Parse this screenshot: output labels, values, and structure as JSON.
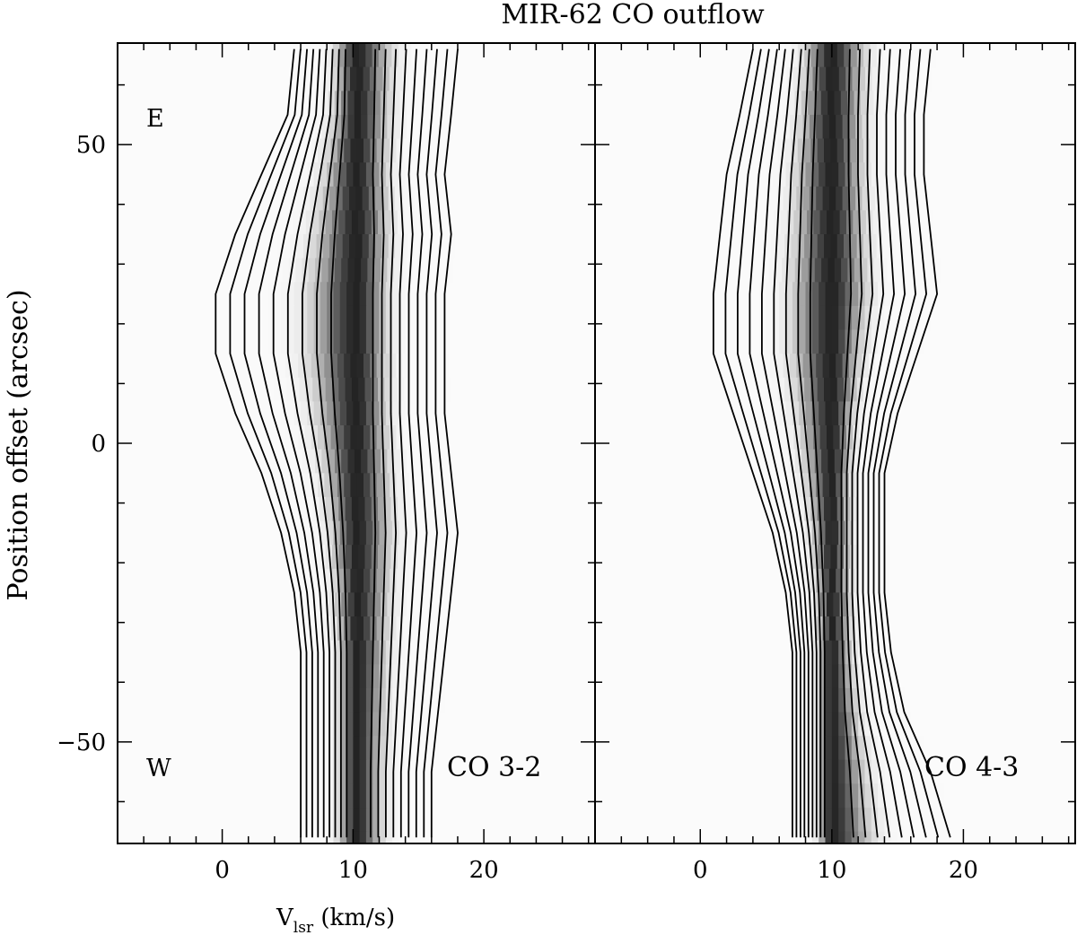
{
  "chart_data": {
    "type": "heatmap",
    "title": "MIR-62 CO outflow",
    "xlabel_main": "V",
    "xlabel_sub": "lsr",
    "xlabel_rest": " (km/s)",
    "ylabel": "Position offset (arcsec)",
    "xlim": [
      -8,
      28.5
    ],
    "ylim": [
      -67,
      67
    ],
    "grid": false,
    "panels": [
      {
        "line": "CO 3-2",
        "x_ticks": [
          0,
          10,
          20
        ],
        "y_ticks": [
          50,
          0,
          -50
        ],
        "corner_labels": {
          "top": "E",
          "bottom": "W"
        },
        "core_velocity": 10.3,
        "edge_velocities": {
          "offsets": [
            66,
            55,
            45,
            35,
            25,
            15,
            5,
            -5,
            -15,
            -25,
            -35,
            -45,
            -55,
            -66
          ],
          "blue": [
            5.5,
            5.0,
            3.0,
            1.0,
            -0.5,
            -0.5,
            1.0,
            3.0,
            4.5,
            5.5,
            6.0,
            6.0,
            6.0,
            6.0
          ],
          "red": [
            18.0,
            17.5,
            17.0,
            17.5,
            17.0,
            17.0,
            17.0,
            17.5,
            18.0,
            17.5,
            17.0,
            16.5,
            16.0,
            16.0
          ]
        }
      },
      {
        "line": "CO 4-3",
        "x_ticks": [
          0,
          10,
          20
        ],
        "y_ticks": [
          50,
          0,
          -50
        ],
        "corner_labels": {
          "top": "",
          "bottom": ""
        },
        "core_velocity": 10.0,
        "edge_velocities": {
          "offsets": [
            66,
            55,
            45,
            35,
            25,
            15,
            5,
            -5,
            -15,
            -25,
            -35,
            -45,
            -55,
            -66
          ],
          "blue": [
            4.0,
            3.0,
            2.0,
            1.5,
            1.0,
            1.0,
            2.5,
            4.0,
            5.5,
            6.5,
            7.0,
            7.0,
            7.0,
            7.0
          ],
          "red": [
            17.5,
            17.0,
            17.0,
            17.5,
            18.0,
            16.5,
            15.0,
            14.0,
            14.0,
            14.0,
            14.5,
            15.5,
            17.5,
            19.0
          ]
        }
      }
    ]
  }
}
